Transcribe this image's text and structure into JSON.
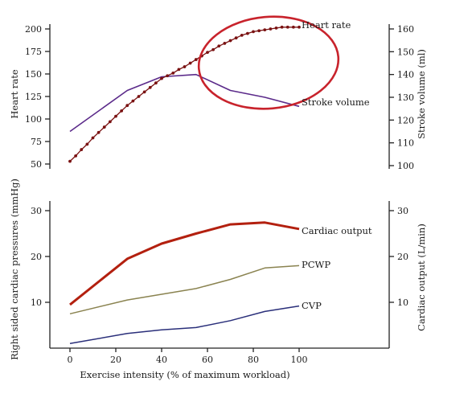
{
  "chart_data": [
    {
      "type": "line",
      "x_ticks": [
        "0",
        "20",
        "40",
        "60",
        "80",
        "100"
      ],
      "xlim": [
        0,
        100
      ],
      "left_axis": {
        "label": "Heart rate",
        "ylim": [
          50,
          200
        ],
        "ticks": [
          "50",
          "75",
          "100",
          "125",
          "150",
          "175",
          "200"
        ],
        "tick_values": [
          50,
          75,
          100,
          125,
          150,
          175,
          200
        ]
      },
      "right_axis": {
        "label": "Stroke volume (ml)",
        "ylim": [
          100,
          160
        ],
        "ticks": [
          "100",
          "110",
          "120",
          "130",
          "140",
          "150",
          "160"
        ],
        "tick_values": [
          100,
          110,
          120,
          130,
          140,
          150,
          160
        ]
      },
      "series": [
        {
          "name": "Heart rate",
          "axis": "left",
          "color": "#7a1212",
          "style": "dotted-markers",
          "x": [
            0,
            2.5,
            5,
            7.5,
            10,
            12.5,
            15,
            17.5,
            20,
            22.5,
            25,
            27.5,
            30,
            32.5,
            35,
            37.5,
            40,
            42.5,
            45,
            47.5,
            50,
            52.5,
            55,
            57.5,
            60,
            62.5,
            65,
            67.5,
            70,
            72.5,
            75,
            77.5,
            80,
            82.5,
            85,
            87.5,
            90,
            92.5,
            95,
            97.5,
            100
          ],
          "y": [
            53,
            59,
            66,
            72,
            79,
            85,
            91,
            97,
            103,
            109,
            115,
            120,
            125,
            130,
            135,
            140,
            145,
            148,
            151,
            155,
            158,
            162,
            166,
            170,
            174,
            177,
            181,
            184,
            187,
            190,
            193,
            195,
            197,
            198,
            199,
            200,
            201,
            202,
            202,
            202,
            202
          ]
        },
        {
          "name": "Stroke volume",
          "axis": "right",
          "color": "#5b2a8a",
          "x": [
            0,
            25,
            40,
            55,
            70,
            85,
            100
          ],
          "y": [
            115,
            133,
            139,
            140,
            133,
            130,
            126
          ]
        }
      ],
      "annotations": [
        "Heart rate",
        "Stroke volume"
      ],
      "highlight": {
        "shape": "ellipse",
        "color": "#c8232c"
      }
    },
    {
      "type": "line",
      "x_ticks": [
        "0",
        "20",
        "40",
        "60",
        "80",
        "100"
      ],
      "xlim": [
        0,
        100
      ],
      "xlabel": "Exercise intensity (% of maximum workload)",
      "left_axis": {
        "label": "Right sided cardiac pressures (mmHg)",
        "ylim": [
          0,
          30
        ],
        "ticks": [
          "10",
          "20",
          "30"
        ],
        "tick_values": [
          10,
          20,
          30
        ]
      },
      "right_axis": {
        "label": "Cardiac output (L/min)",
        "ylim": [
          0,
          30
        ],
        "ticks": [
          "10",
          "20",
          "30"
        ],
        "tick_values": [
          10,
          20,
          30
        ]
      },
      "series": [
        {
          "name": "Cardiac output",
          "axis": "right",
          "color": "#b3200f",
          "x": [
            0,
            25,
            40,
            55,
            70,
            85,
            100
          ],
          "y": [
            9.5,
            19.5,
            22.8,
            25,
            27,
            27.4,
            26
          ]
        },
        {
          "name": "PCWP",
          "axis": "left",
          "color": "#8a8350",
          "x": [
            0,
            25,
            55,
            70,
            85,
            100
          ],
          "y": [
            7.5,
            10.5,
            13,
            15,
            17.5,
            18
          ]
        },
        {
          "name": "CVP",
          "axis": "left",
          "color": "#2a2f7a",
          "x": [
            0,
            25,
            40,
            55,
            70,
            85,
            100
          ],
          "y": [
            1,
            3.2,
            4,
            4.5,
            6,
            8,
            9.2
          ]
        }
      ],
      "annotations": [
        "Cardiac output",
        "PCWP",
        "CVP"
      ]
    }
  ]
}
